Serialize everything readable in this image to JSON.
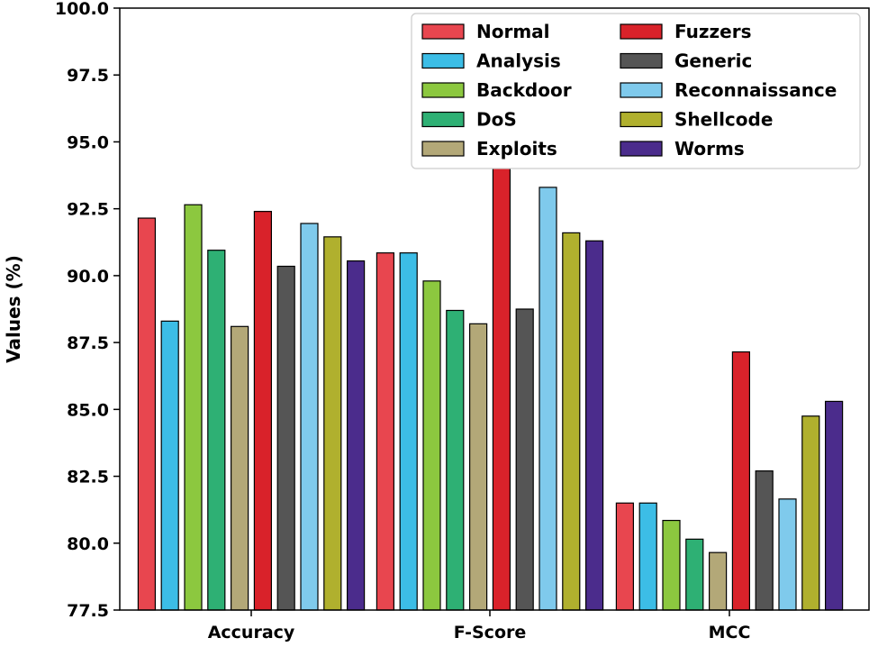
{
  "chart_data": {
    "type": "bar",
    "title": "",
    "xlabel": "",
    "ylabel": "Values (%)",
    "ylim": [
      77.5,
      100.0
    ],
    "yticks": [
      "77.5",
      "80.0",
      "82.5",
      "85.0",
      "87.5",
      "90.0",
      "92.5",
      "95.0",
      "97.5",
      "100.0"
    ],
    "categories": [
      "Accuracy",
      "F-Score",
      "MCC"
    ],
    "legend_position": "top-right",
    "series": [
      {
        "name": "Normal",
        "color": "#e8464f",
        "values": [
          92.15,
          90.85,
          81.5
        ]
      },
      {
        "name": "Analysis",
        "color": "#3cbde6",
        "values": [
          88.3,
          90.85,
          81.5
        ]
      },
      {
        "name": "Backdoor",
        "color": "#8cc83f",
        "values": [
          92.65,
          89.8,
          80.85
        ]
      },
      {
        "name": "DoS",
        "color": "#2eb074",
        "values": [
          90.95,
          88.7,
          80.15
        ]
      },
      {
        "name": "Exploits",
        "color": "#b3a878",
        "values": [
          88.1,
          88.2,
          79.65
        ]
      },
      {
        "name": "Fuzzers",
        "color": "#d9222a",
        "values": [
          92.4,
          94.3,
          87.15
        ]
      },
      {
        "name": "Generic",
        "color": "#555555",
        "values": [
          90.35,
          88.75,
          82.7
        ]
      },
      {
        "name": "Reconnaissance",
        "color": "#7fcaec",
        "values": [
          91.95,
          93.3,
          81.65
        ]
      },
      {
        "name": "Shellcode",
        "color": "#b0b02e",
        "values": [
          91.45,
          91.6,
          84.75
        ]
      },
      {
        "name": "Worms",
        "color": "#4b2c8c",
        "values": [
          90.55,
          91.3,
          85.3
        ]
      }
    ]
  }
}
